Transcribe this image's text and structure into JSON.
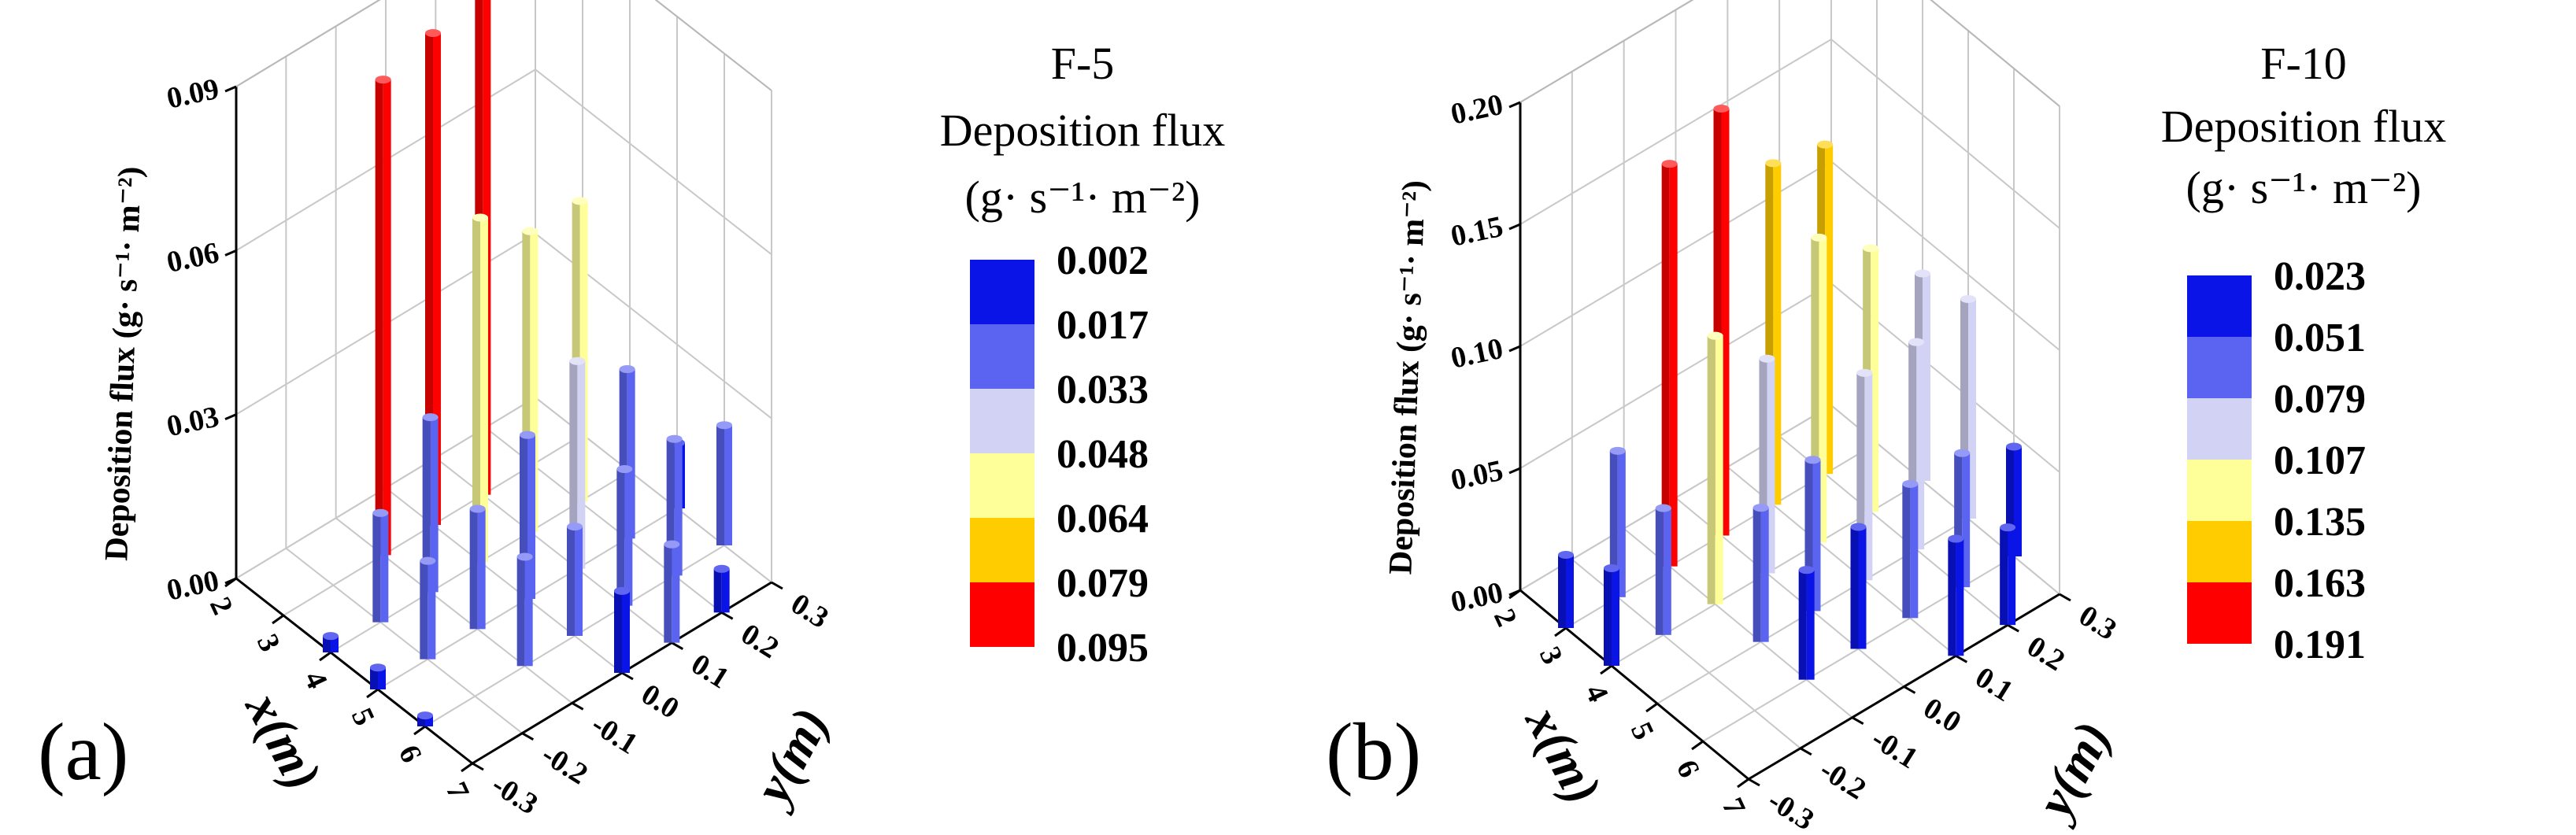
{
  "chart_data": [
    {
      "type": "bar3d",
      "panel_label": "(a)",
      "case": "F-5",
      "zlabel": "Deposition flux (g· s⁻¹· m⁻²)",
      "xlabel": "x(m)",
      "ylabel": "y(m)",
      "zlim": [
        0,
        0.09
      ],
      "zticks": [
        "0.00",
        "0.03",
        "0.06",
        "0.09"
      ],
      "xticks": [
        "2",
        "3",
        "4",
        "5",
        "6",
        "7"
      ],
      "yticks": [
        "-0.3",
        "-0.2",
        "-0.1",
        "0.0",
        "0.1",
        "0.2",
        "0.3"
      ],
      "legend": {
        "title": [
          "F-5",
          "Deposition flux",
          "(g· s⁻¹· m⁻²)"
        ],
        "levels": [
          "0.002",
          "0.017",
          "0.033",
          "0.048",
          "0.064",
          "0.079",
          "0.095"
        ],
        "colors": [
          "#0a14e6",
          "#5a64f0",
          "#d2d2f5",
          "#ffff9a",
          "#ffcc00",
          "#ff0000"
        ]
      },
      "bars": [
        {
          "x": 3.0,
          "y": -0.1,
          "value": 0.087
        },
        {
          "x": 3.0,
          "y": 0.0,
          "value": 0.09
        },
        {
          "x": 3.0,
          "y": 0.1,
          "value": 0.094
        },
        {
          "x": 4.0,
          "y": 0.0,
          "value": 0.063
        },
        {
          "x": 4.0,
          "y": 0.1,
          "value": 0.055
        },
        {
          "x": 4.0,
          "y": 0.2,
          "value": 0.055
        },
        {
          "x": 4.0,
          "y": -0.1,
          "value": 0.032
        },
        {
          "x": 5.0,
          "y": 0.1,
          "value": 0.038
        },
        {
          "x": 5.0,
          "y": 0.2,
          "value": 0.031
        },
        {
          "x": 6.0,
          "y": 0.2,
          "value": 0.025
        },
        {
          "x": 5.0,
          "y": 0.0,
          "value": 0.03
        },
        {
          "x": 4.0,
          "y": -0.2,
          "value": 0.02
        },
        {
          "x": 5.0,
          "y": -0.1,
          "value": 0.022
        },
        {
          "x": 6.0,
          "y": 0.1,
          "value": 0.025
        },
        {
          "x": 5.0,
          "y": 0.3,
          "value": 0.012
        },
        {
          "x": 6.0,
          "y": 0.3,
          "value": 0.022
        },
        {
          "x": 6.0,
          "y": 0.0,
          "value": 0.02
        },
        {
          "x": 7.0,
          "y": 0.2,
          "value": 0.008
        },
        {
          "x": 5.0,
          "y": -0.2,
          "value": 0.018
        },
        {
          "x": 6.0,
          "y": -0.1,
          "value": 0.02
        },
        {
          "x": 7.0,
          "y": 0.1,
          "value": 0.018
        },
        {
          "x": 7.0,
          "y": 0.0,
          "value": 0.015
        },
        {
          "x": 4.0,
          "y": -0.3,
          "value": 0.003
        },
        {
          "x": 5.0,
          "y": -0.3,
          "value": 0.004
        },
        {
          "x": 6.0,
          "y": -0.3,
          "value": 0.002
        }
      ]
    },
    {
      "type": "bar3d",
      "panel_label": "(b)",
      "case": "F-10",
      "zlabel": "Deposition flux (g· s⁻¹· m⁻²)",
      "xlabel": "x(m)",
      "ylabel": "y(m)",
      "zlim": [
        0,
        0.2
      ],
      "zticks": [
        "0.00",
        "0.05",
        "0.10",
        "0.15",
        "0.20"
      ],
      "xticks": [
        "2",
        "3",
        "4",
        "5",
        "6",
        "7"
      ],
      "yticks": [
        "-0.3",
        "-0.2",
        "-0.1",
        "0.0",
        "0.1",
        "0.2",
        "0.3"
      ],
      "legend": {
        "title": [
          "F-10",
          "Deposition flux",
          "(g· s⁻¹· m⁻²)"
        ],
        "levels": [
          "0.023",
          "0.051",
          "0.079",
          "0.107",
          "0.135",
          "0.163",
          "0.191"
        ],
        "colors": [
          "#0a14e6",
          "#5a64f0",
          "#d2d2f5",
          "#ffff9a",
          "#ffcc00",
          "#ff0000"
        ]
      },
      "bars": [
        {
          "x": 3.0,
          "y": -0.1,
          "value": 0.165
        },
        {
          "x": 3.0,
          "y": 0.0,
          "value": 0.175
        },
        {
          "x": 3.0,
          "y": 0.1,
          "value": 0.14
        },
        {
          "x": 3.0,
          "y": 0.2,
          "value": 0.135
        },
        {
          "x": 4.0,
          "y": -0.1,
          "value": 0.11
        },
        {
          "x": 4.0,
          "y": 0.0,
          "value": 0.088
        },
        {
          "x": 4.0,
          "y": 0.1,
          "value": 0.125
        },
        {
          "x": 4.0,
          "y": 0.2,
          "value": 0.108
        },
        {
          "x": 4.0,
          "y": 0.3,
          "value": 0.085
        },
        {
          "x": 5.0,
          "y": 0.1,
          "value": 0.085
        },
        {
          "x": 5.0,
          "y": 0.2,
          "value": 0.085
        },
        {
          "x": 5.0,
          "y": 0.3,
          "value": 0.09
        },
        {
          "x": 3.0,
          "y": -0.2,
          "value": 0.06
        },
        {
          "x": 4.0,
          "y": -0.2,
          "value": 0.052
        },
        {
          "x": 5.0,
          "y": 0.0,
          "value": 0.062
        },
        {
          "x": 6.0,
          "y": 0.2,
          "value": 0.055
        },
        {
          "x": 6.0,
          "y": 0.3,
          "value": 0.045
        },
        {
          "x": 6.0,
          "y": 0.1,
          "value": 0.055
        },
        {
          "x": 5.0,
          "y": -0.1,
          "value": 0.055
        },
        {
          "x": 6.0,
          "y": 0.0,
          "value": 0.05
        },
        {
          "x": 7.0,
          "y": 0.2,
          "value": 0.04
        },
        {
          "x": 7.0,
          "y": 0.1,
          "value": 0.048
        },
        {
          "x": 3.0,
          "y": -0.3,
          "value": 0.03
        },
        {
          "x": 4.0,
          "y": -0.3,
          "value": 0.04
        },
        {
          "x": 6.0,
          "y": -0.1,
          "value": 0.045
        }
      ]
    }
  ]
}
